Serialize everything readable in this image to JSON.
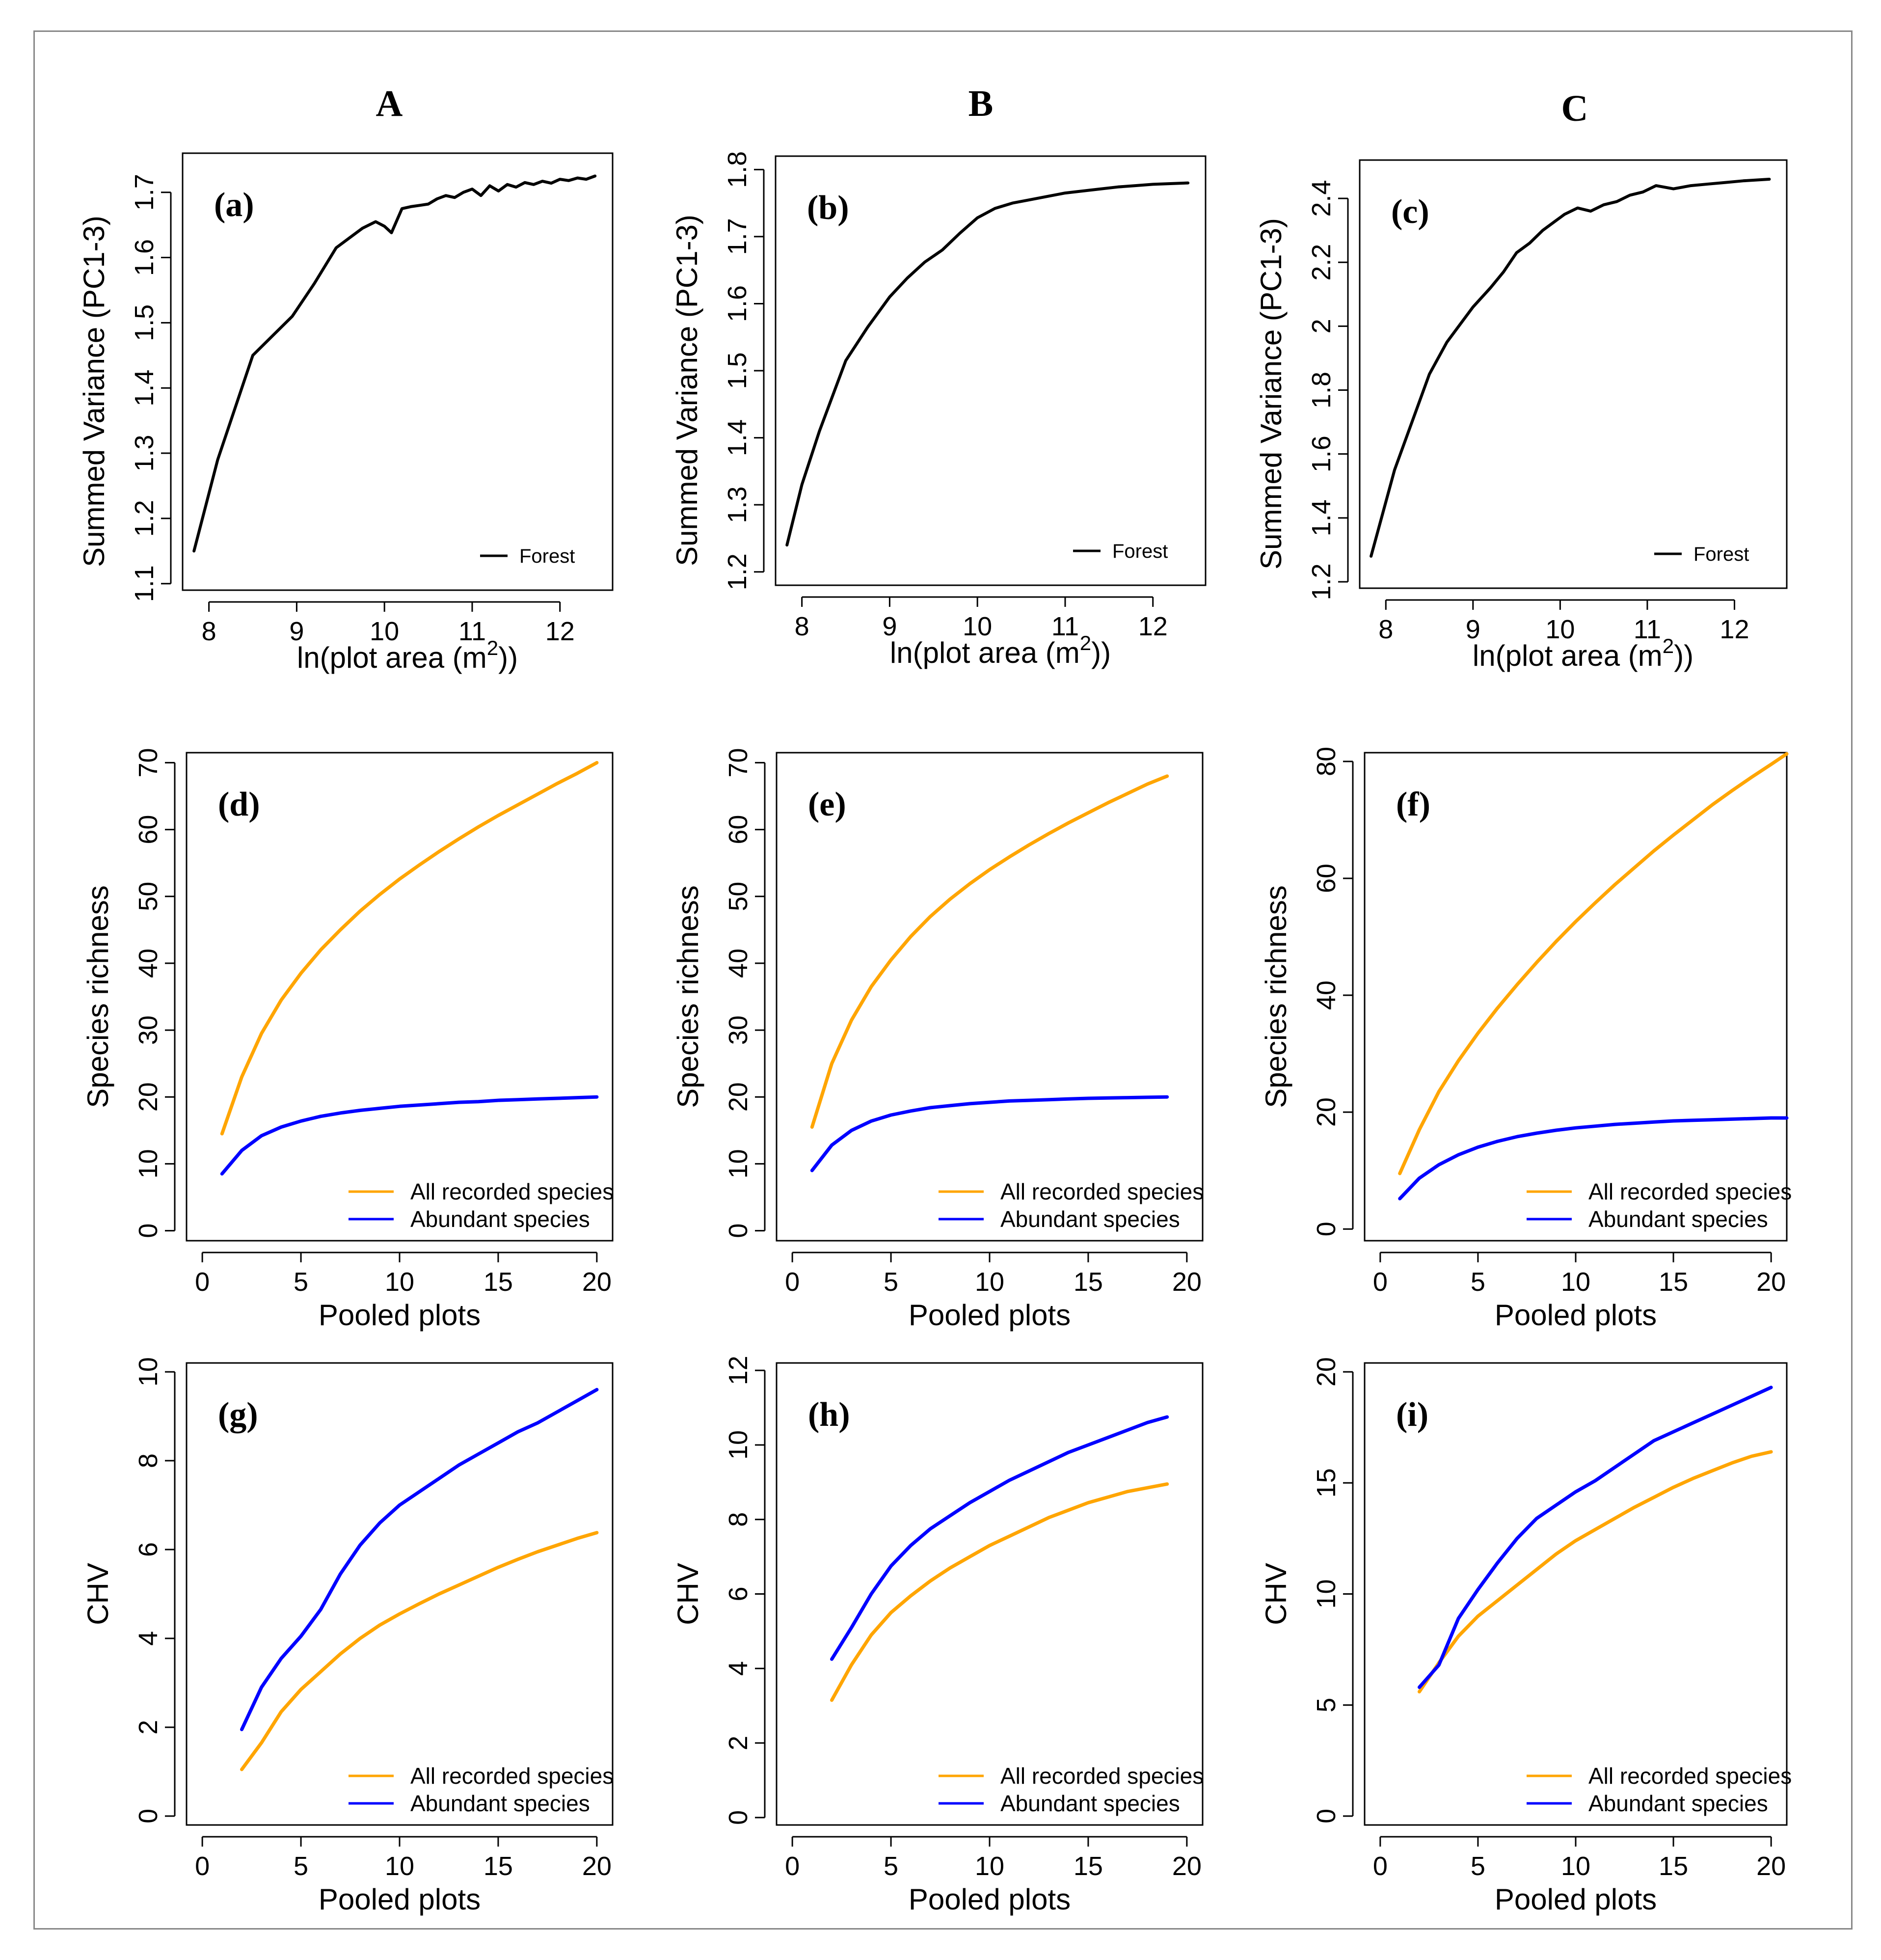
{
  "column_labels": [
    "A",
    "B",
    "C"
  ],
  "colors": {
    "orange": "#FFA500",
    "blue": "#0000FF",
    "black": "#000000"
  },
  "chart_data": [
    {
      "id": "a",
      "label": "(a)",
      "type": "line",
      "xlabel": "ln(plot area (m2))",
      "ylabel": "Summed Variance (PC1-3)",
      "xlim": [
        7.7,
        12.6
      ],
      "ylim": [
        1.09,
        1.76
      ],
      "xticks": [
        8,
        9,
        10,
        11,
        12
      ],
      "yticks": [
        1.1,
        1.2,
        1.3,
        1.4,
        1.5,
        1.6,
        1.7
      ],
      "series": [
        {
          "name": "Forest",
          "color": "#000000",
          "x": [
            7.83,
            8.1,
            8.5,
            8.95,
            9.2,
            9.45,
            9.6,
            9.75,
            9.9,
            10.0,
            10.08,
            10.2,
            10.3,
            10.4,
            10.5,
            10.6,
            10.7,
            10.8,
            10.9,
            11.0,
            11.1,
            11.2,
            11.3,
            11.4,
            11.5,
            11.6,
            11.7,
            11.8,
            11.9,
            12.0,
            12.1,
            12.2,
            12.3,
            12.4
          ],
          "y": [
            1.15,
            1.29,
            1.45,
            1.51,
            1.56,
            1.615,
            1.63,
            1.645,
            1.655,
            1.648,
            1.638,
            1.675,
            1.678,
            1.68,
            1.682,
            1.69,
            1.695,
            1.692,
            1.7,
            1.705,
            1.695,
            1.71,
            1.702,
            1.712,
            1.708,
            1.715,
            1.712,
            1.717,
            1.714,
            1.72,
            1.718,
            1.722,
            1.72,
            1.725
          ]
        }
      ]
    },
    {
      "id": "b",
      "label": "(b)",
      "type": "line",
      "xlabel": "ln(plot area (m2))",
      "ylabel": "Summed Variance (PC1-3)",
      "xlim": [
        7.7,
        12.6
      ],
      "ylim": [
        1.18,
        1.82
      ],
      "xticks": [
        8,
        9,
        10,
        11,
        12
      ],
      "yticks": [
        1.2,
        1.3,
        1.4,
        1.5,
        1.6,
        1.7,
        1.8
      ],
      "series": [
        {
          "name": "Forest",
          "color": "#000000",
          "x": [
            7.83,
            8.0,
            8.2,
            8.5,
            8.75,
            9.0,
            9.2,
            9.4,
            9.6,
            9.8,
            10.0,
            10.2,
            10.4,
            10.6,
            10.8,
            11.0,
            11.2,
            11.4,
            11.6,
            11.8,
            12.0,
            12.2,
            12.4
          ],
          "y": [
            1.24,
            1.33,
            1.41,
            1.515,
            1.565,
            1.61,
            1.638,
            1.662,
            1.68,
            1.705,
            1.728,
            1.742,
            1.75,
            1.755,
            1.76,
            1.765,
            1.768,
            1.771,
            1.774,
            1.776,
            1.778,
            1.779,
            1.78
          ]
        }
      ]
    },
    {
      "id": "c",
      "label": "(c)",
      "type": "line",
      "xlabel": "ln(plot area (m2))",
      "ylabel": "Summed Variance (PC1-3)",
      "xlim": [
        7.7,
        12.6
      ],
      "ylim": [
        1.18,
        2.52
      ],
      "xticks": [
        8,
        9,
        10,
        11,
        12
      ],
      "yticks": [
        1.2,
        1.4,
        1.6,
        1.8,
        2.0,
        2.2,
        2.4
      ],
      "series": [
        {
          "name": "Forest",
          "color": "#000000",
          "x": [
            7.83,
            8.1,
            8.5,
            8.7,
            9.0,
            9.2,
            9.35,
            9.5,
            9.65,
            9.8,
            9.95,
            10.05,
            10.2,
            10.35,
            10.5,
            10.65,
            10.8,
            10.95,
            11.1,
            11.3,
            11.5,
            11.7,
            11.9,
            12.1,
            12.4
          ],
          "y": [
            1.28,
            1.55,
            1.85,
            1.95,
            2.06,
            2.12,
            2.17,
            2.23,
            2.26,
            2.3,
            2.33,
            2.35,
            2.37,
            2.36,
            2.38,
            2.39,
            2.41,
            2.42,
            2.44,
            2.43,
            2.44,
            2.445,
            2.45,
            2.455,
            2.46
          ]
        }
      ]
    },
    {
      "id": "d",
      "label": "(d)",
      "type": "line",
      "xlabel": "Pooled plots",
      "ylabel": "Species richness",
      "xlim": [
        -0.8,
        20.8
      ],
      "ylim": [
        -1.5,
        71.5
      ],
      "xticks": [
        0,
        5,
        10,
        15,
        20
      ],
      "yticks": [
        0,
        10,
        20,
        30,
        40,
        50,
        60,
        70
      ],
      "series": [
        {
          "name": "All recorded species",
          "color": "#FFA500",
          "x": [
            1,
            2,
            3,
            4,
            5,
            6,
            7,
            8,
            9,
            10,
            11,
            12,
            13,
            14,
            15,
            16,
            17,
            18,
            19,
            20
          ],
          "y": [
            14.5,
            23.0,
            29.5,
            34.5,
            38.5,
            42.0,
            45.0,
            47.8,
            50.3,
            52.6,
            54.7,
            56.7,
            58.6,
            60.4,
            62.1,
            63.7,
            65.3,
            66.9,
            68.4,
            70.0
          ]
        },
        {
          "name": "Abundant species",
          "color": "#0000FF",
          "x": [
            1,
            2,
            3,
            4,
            5,
            6,
            7,
            8,
            9,
            10,
            11,
            12,
            13,
            14,
            15,
            16,
            17,
            18,
            19,
            20
          ],
          "y": [
            8.5,
            12.0,
            14.2,
            15.5,
            16.4,
            17.1,
            17.6,
            18.0,
            18.3,
            18.6,
            18.8,
            19.0,
            19.2,
            19.3,
            19.5,
            19.6,
            19.7,
            19.8,
            19.9,
            20.0
          ]
        }
      ]
    },
    {
      "id": "e",
      "label": "(e)",
      "type": "line",
      "xlabel": "Pooled plots",
      "ylabel": "Species richness",
      "xlim": [
        -0.8,
        20.8
      ],
      "ylim": [
        -1.5,
        71.5
      ],
      "xticks": [
        0,
        5,
        10,
        15,
        20
      ],
      "yticks": [
        0,
        10,
        20,
        30,
        40,
        50,
        60,
        70
      ],
      "series": [
        {
          "name": "All recorded species",
          "color": "#FFA500",
          "x": [
            1,
            2,
            3,
            4,
            5,
            6,
            7,
            8,
            9,
            10,
            11,
            12,
            13,
            14,
            15,
            16,
            17,
            18,
            19
          ],
          "y": [
            15.5,
            25.0,
            31.5,
            36.5,
            40.5,
            44.0,
            47.0,
            49.6,
            51.9,
            54.0,
            55.9,
            57.7,
            59.4,
            61.0,
            62.5,
            64.0,
            65.4,
            66.8,
            68.0
          ]
        },
        {
          "name": "Abundant species",
          "color": "#0000FF",
          "x": [
            1,
            2,
            3,
            4,
            5,
            6,
            7,
            8,
            9,
            10,
            11,
            12,
            13,
            14,
            15,
            16,
            17,
            18,
            19
          ],
          "y": [
            9.0,
            12.8,
            15.0,
            16.4,
            17.3,
            17.9,
            18.4,
            18.7,
            19.0,
            19.2,
            19.4,
            19.5,
            19.6,
            19.7,
            19.8,
            19.85,
            19.9,
            19.95,
            20.0
          ]
        }
      ]
    },
    {
      "id": "f",
      "label": "(f)",
      "type": "line",
      "xlabel": "Pooled plots",
      "ylabel": "Species richness",
      "xlim": [
        -0.8,
        20.8
      ],
      "ylim": [
        -2,
        81.5
      ],
      "xticks": [
        0,
        5,
        10,
        15,
        20
      ],
      "yticks": [
        0,
        20,
        40,
        60,
        80
      ],
      "series": [
        {
          "name": "All recorded species",
          "color": "#FFA500",
          "x": [
            1,
            2,
            3,
            4,
            5,
            6,
            7,
            8,
            9,
            10,
            11,
            12,
            13,
            14,
            15,
            16,
            17,
            18,
            19,
            20,
            20.8
          ],
          "y": [
            9.5,
            17.0,
            23.5,
            28.8,
            33.5,
            37.8,
            41.8,
            45.6,
            49.2,
            52.6,
            55.8,
            58.9,
            61.8,
            64.7,
            67.4,
            70.0,
            72.6,
            75.0,
            77.3,
            79.5,
            81.3
          ]
        },
        {
          "name": "Abundant species",
          "color": "#0000FF",
          "x": [
            1,
            2,
            3,
            4,
            5,
            6,
            7,
            8,
            9,
            10,
            11,
            12,
            13,
            14,
            15,
            16,
            17,
            18,
            19,
            20,
            20.8
          ],
          "y": [
            5.2,
            8.7,
            11.0,
            12.7,
            14.0,
            15.0,
            15.8,
            16.4,
            16.9,
            17.3,
            17.6,
            17.9,
            18.1,
            18.3,
            18.5,
            18.6,
            18.7,
            18.8,
            18.9,
            19.0,
            19.0
          ]
        }
      ]
    },
    {
      "id": "g",
      "label": "(g)",
      "type": "line",
      "xlabel": "Pooled plots",
      "ylabel": "CHV",
      "xlim": [
        -0.8,
        20.8
      ],
      "ylim": [
        -0.2,
        10.2
      ],
      "xticks": [
        0,
        5,
        10,
        15,
        20
      ],
      "yticks": [
        0,
        2,
        4,
        6,
        8,
        10
      ],
      "series": [
        {
          "name": "All recorded species",
          "color": "#FFA500",
          "x": [
            2,
            3,
            4,
            5,
            6,
            7,
            8,
            9,
            10,
            11,
            12,
            13,
            14,
            15,
            16,
            17,
            18,
            19,
            20
          ],
          "y": [
            1.05,
            1.65,
            2.35,
            2.85,
            3.25,
            3.65,
            4.0,
            4.3,
            4.55,
            4.78,
            5.0,
            5.2,
            5.4,
            5.6,
            5.78,
            5.95,
            6.1,
            6.25,
            6.38
          ]
        },
        {
          "name": "Abundant species",
          "color": "#0000FF",
          "x": [
            2,
            3,
            4,
            5,
            6,
            7,
            8,
            9,
            10,
            11,
            12,
            13,
            14,
            15,
            16,
            17,
            18,
            19,
            20
          ],
          "y": [
            1.95,
            2.9,
            3.55,
            4.05,
            4.65,
            5.45,
            6.1,
            6.6,
            7.0,
            7.3,
            7.6,
            7.9,
            8.15,
            8.4,
            8.65,
            8.85,
            9.1,
            9.35,
            9.6
          ]
        }
      ]
    },
    {
      "id": "h",
      "label": "(h)",
      "type": "line",
      "xlabel": "Pooled plots",
      "ylabel": "CHV",
      "xlim": [
        -0.8,
        20.8
      ],
      "ylim": [
        -0.2,
        12.2
      ],
      "xticks": [
        0,
        5,
        10,
        15,
        20
      ],
      "yticks": [
        0,
        2,
        4,
        6,
        8,
        10,
        12
      ],
      "series": [
        {
          "name": "All recorded species",
          "color": "#FFA500",
          "x": [
            2,
            3,
            4,
            5,
            6,
            7,
            8,
            9,
            10,
            11,
            12,
            13,
            14,
            15,
            16,
            17,
            18,
            19
          ],
          "y": [
            3.15,
            4.1,
            4.9,
            5.5,
            5.95,
            6.35,
            6.7,
            7.0,
            7.3,
            7.55,
            7.8,
            8.05,
            8.25,
            8.45,
            8.6,
            8.75,
            8.85,
            8.95
          ]
        },
        {
          "name": "Abundant species",
          "color": "#0000FF",
          "x": [
            2,
            3,
            4,
            5,
            6,
            7,
            8,
            9,
            10,
            11,
            12,
            13,
            14,
            15,
            16,
            17,
            18,
            19
          ],
          "y": [
            4.25,
            5.1,
            6.0,
            6.75,
            7.3,
            7.75,
            8.1,
            8.45,
            8.75,
            9.05,
            9.3,
            9.55,
            9.8,
            10.0,
            10.2,
            10.4,
            10.6,
            10.75
          ]
        }
      ]
    },
    {
      "id": "i",
      "label": "(i)",
      "type": "line",
      "xlabel": "Pooled plots",
      "ylabel": "CHV",
      "xlim": [
        -0.8,
        20.8
      ],
      "ylim": [
        -0.4,
        20.4
      ],
      "xticks": [
        0,
        5,
        10,
        15,
        20
      ],
      "yticks": [
        0,
        5,
        10,
        15,
        20
      ],
      "series": [
        {
          "name": "All recorded species",
          "color": "#FFA500",
          "x": [
            2,
            3,
            4,
            5,
            6,
            7,
            8,
            9,
            10,
            11,
            12,
            13,
            14,
            15,
            16,
            17,
            18,
            19,
            20
          ],
          "y": [
            5.6,
            6.9,
            8.1,
            9.0,
            9.7,
            10.4,
            11.1,
            11.8,
            12.4,
            12.9,
            13.4,
            13.9,
            14.35,
            14.8,
            15.2,
            15.55,
            15.9,
            16.2,
            16.4
          ]
        },
        {
          "name": "Abundant species",
          "color": "#0000FF",
          "x": [
            2,
            3,
            4,
            5,
            6,
            7,
            8,
            9,
            10,
            11,
            12,
            13,
            14,
            15,
            16,
            17,
            18,
            19,
            20
          ],
          "y": [
            5.8,
            6.8,
            8.9,
            10.2,
            11.4,
            12.5,
            13.4,
            14.0,
            14.6,
            15.1,
            15.7,
            16.3,
            16.9,
            17.3,
            17.7,
            18.1,
            18.5,
            18.9,
            19.3
          ]
        }
      ]
    }
  ]
}
